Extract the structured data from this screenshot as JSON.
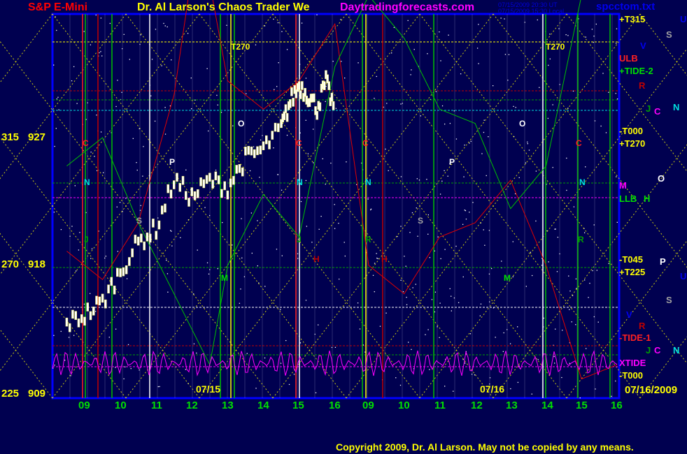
{
  "header": {
    "instrument": "S&P E-Mini",
    "title": "Dr. Al Larson's Chaos Trader We",
    "site": "Daytradingforecasts.com",
    "time_ut": "07/15/2009 20:30 UT",
    "time_local": "07/15/2009 15:30 Local",
    "file": "spcctom.txt"
  },
  "footer": {
    "copyright": "Copyright 2009, Dr. Al Larson. May not be copied by any means."
  },
  "colors": {
    "background": "#000050",
    "frame": "#0000ff",
    "price": "#ffffff",
    "grid_yellow": "#ffff00",
    "green": "#00c000",
    "red": "#e00000",
    "magenta": "#ff00ff",
    "cyan": "#00e0e0"
  },
  "chart_data": {
    "type": "line",
    "title": "S&P E-Mini",
    "y_left_labels": [
      {
        "angle": "315",
        "price": "927"
      },
      {
        "angle": "270",
        "price": "918"
      },
      {
        "angle": "225",
        "price": "909"
      }
    ],
    "ylim": [
      907.5,
      945.5
    ],
    "x_ticks": [
      "09",
      "10",
      "11",
      "12",
      "13",
      "14",
      "15",
      "16",
      "09",
      "10",
      "11",
      "12",
      "13",
      "14",
      "15",
      "16"
    ],
    "day_labels": [
      "07/15",
      "07/16"
    ],
    "date_label": "07/16/2009",
    "right_labels": [
      "+T315",
      "+TIDE-2",
      "ULB",
      "-T000",
      "+T270",
      "M",
      "LLB",
      "H",
      "-T045",
      "+T225",
      "-TIDE-1",
      "XTIDE",
      "-T000"
    ],
    "right_planet_letters": [
      "U",
      "S",
      "V",
      "R",
      "J",
      "C",
      "N",
      "O",
      "P",
      "U",
      "S",
      "V",
      "R",
      "J",
      "C",
      "N"
    ],
    "chart_markers": [
      "T270",
      "T270",
      "C",
      "C",
      "C",
      "C",
      "N",
      "N",
      "N",
      "N",
      "P",
      "P",
      "O",
      "O",
      "S",
      "S",
      "J",
      "J",
      "R",
      "R",
      "H",
      "H",
      "M",
      "M"
    ],
    "price_series": {
      "name": "S&P E-Mini",
      "x_hours": [
        8.5,
        9,
        9.5,
        10,
        10.5,
        11,
        11.5,
        12,
        12.5,
        13,
        13.5,
        14,
        14.5,
        14.75,
        15,
        15.25,
        15.5,
        15.75,
        16
      ],
      "values": [
        913.9,
        914.5,
        915.4,
        917.6,
        919.6,
        920.6,
        924.0,
        922.8,
        924.0,
        923.5,
        925.5,
        926.2,
        927.7,
        929.5,
        930.7,
        930.0,
        929.1,
        930.9,
        928.9
      ]
    },
    "series": [
      {
        "color": "red",
        "x_hours": [
          8.5,
          9.5,
          10.5,
          11.5,
          12.2,
          13,
          14,
          15,
          16,
          17,
          18,
          19,
          20,
          21,
          22,
          23,
          24
        ],
        "values": [
          919,
          917,
          921,
          930,
          942,
          931,
          929,
          931,
          935,
          918,
          916,
          920,
          921,
          924,
          918,
          910,
          911
        ]
      },
      {
        "color": "green",
        "x_hours": [
          8.5,
          9.5,
          10.5,
          11.5,
          12.5,
          13,
          14,
          15,
          16,
          17,
          18,
          19,
          20,
          21,
          22,
          23,
          24
        ],
        "values": [
          925,
          927,
          921,
          916,
          911,
          918,
          923,
          920,
          932,
          937,
          934,
          929,
          928,
          922,
          925,
          937,
          938
        ]
      },
      {
        "color": "magenta",
        "x_hours": [
          8.5,
          24
        ],
        "values": [
          910,
          910
        ]
      }
    ]
  }
}
